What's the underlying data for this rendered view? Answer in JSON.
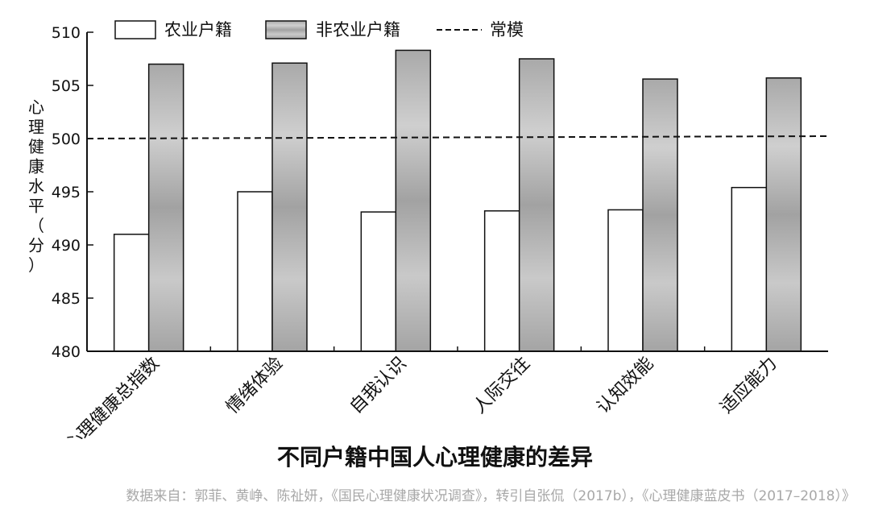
{
  "chart_data": {
    "type": "bar",
    "title": "不同户籍中国人心理健康的差异",
    "ylabel": "心理健康水平（分）",
    "xlabel": "",
    "ylim": [
      480,
      510
    ],
    "yticks": [
      480,
      485,
      490,
      495,
      500,
      505,
      510
    ],
    "categories": [
      "心理健康总指数",
      "情绪体验",
      "自我认识",
      "人际交往",
      "认知效能",
      "适应能力"
    ],
    "series": [
      {
        "name": "农业户籍",
        "values": [
          491.0,
          495.0,
          493.1,
          493.2,
          493.3,
          495.4
        ]
      },
      {
        "name": "非农业户籍",
        "values": [
          507.0,
          507.1,
          508.3,
          507.5,
          505.6,
          505.7
        ]
      }
    ],
    "reference_line": {
      "name": "常模",
      "value": 500
    },
    "legend_position": "top",
    "grid": false
  },
  "source_note": "数据来自：郭菲、黄峥、陈祉妍，《国民心理健康状况调查》，转引自张侃（2017b），《心理健康蓝皮书（2017–2018）》",
  "colors": {
    "rural_bar": "#ffffff",
    "urban_bar": "#b5b5b5",
    "axis": "#111111"
  }
}
